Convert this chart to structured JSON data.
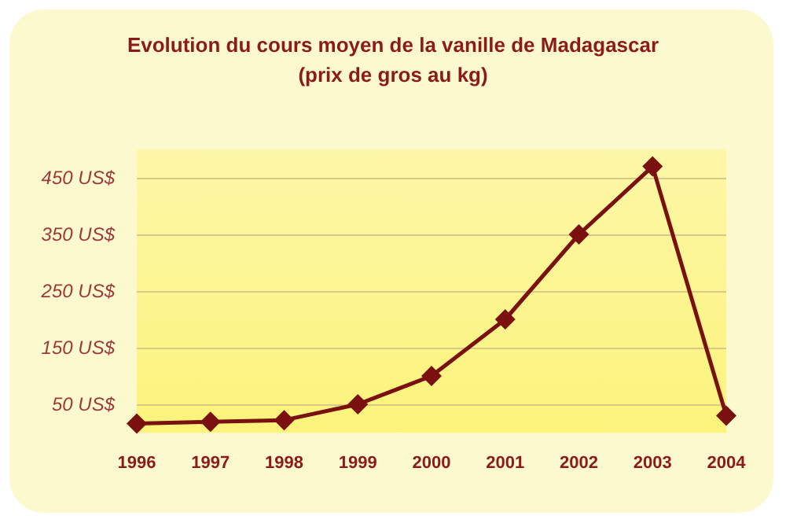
{
  "chart_data": {
    "type": "line",
    "title": "Evolution du cours moyen de la vanille de Madagascar\n(prix de gros au kg)",
    "categories": [
      "1996",
      "1997",
      "1998",
      "1999",
      "2000",
      "2001",
      "2002",
      "2003",
      "2004"
    ],
    "series": [
      {
        "color": "#7a1010",
        "values": [
          16,
          19,
          22,
          50,
          100,
          200,
          350,
          470,
          30
        ]
      }
    ],
    "ylim": [
      0,
      500
    ],
    "yticks": [
      {
        "value": 50,
        "label": "50 US$"
      },
      {
        "value": 150,
        "label": "150 US$"
      },
      {
        "value": 250,
        "label": "250 US$"
      },
      {
        "value": 350,
        "label": "350 US$"
      },
      {
        "value": 450,
        "label": "450 US$"
      }
    ],
    "grid": "y",
    "marker": "diamond",
    "line_style": "solid"
  }
}
